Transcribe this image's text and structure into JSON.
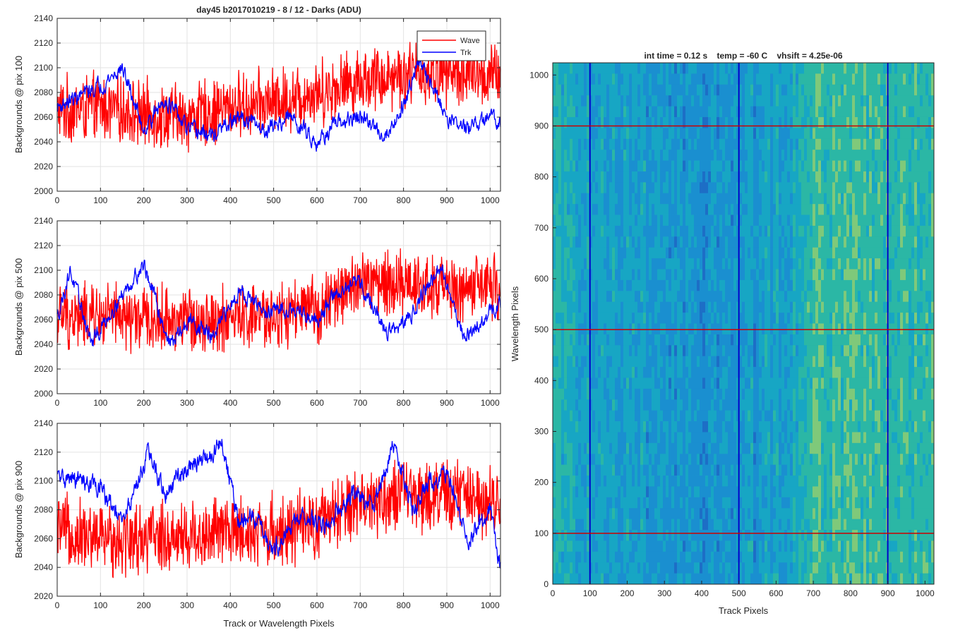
{
  "figure_title": "day45 b2017010219 - 8 / 12 - Darks (ADU)",
  "chart_data": [
    {
      "type": "line",
      "ylabel": "Backgrounds @ pix 100",
      "xlabel": "",
      "xlim": [
        0,
        1024
      ],
      "ylim": [
        2000,
        2140
      ],
      "xticks": [
        0,
        100,
        200,
        300,
        400,
        500,
        600,
        700,
        800,
        900,
        1000
      ],
      "yticks": [
        2000,
        2020,
        2040,
        2060,
        2080,
        2100,
        2120,
        2140
      ],
      "grid": true,
      "legend": {
        "placement": "top-right",
        "entries": [
          "Wave",
          "Trk"
        ]
      },
      "series": [
        {
          "name": "Wave",
          "color": "#ff0000",
          "samples": 1024,
          "anchors_x": [
            0,
            100,
            200,
            300,
            400,
            500,
            600,
            700,
            800,
            900,
            1024
          ],
          "anchors_y": [
            2065,
            2068,
            2062,
            2060,
            2068,
            2072,
            2080,
            2090,
            2095,
            2096,
            2092
          ],
          "spread": 32
        },
        {
          "name": "Trk",
          "color": "#0000ff",
          "samples": 1024,
          "anchors_x": [
            0,
            40,
            80,
            110,
            150,
            200,
            250,
            300,
            360,
            420,
            480,
            540,
            600,
            650,
            700,
            760,
            800,
            830,
            860,
            900,
            950,
            1000,
            1024
          ],
          "anchors_y": [
            2068,
            2075,
            2082,
            2088,
            2100,
            2050,
            2075,
            2050,
            2045,
            2060,
            2050,
            2060,
            2040,
            2055,
            2060,
            2045,
            2070,
            2105,
            2090,
            2060,
            2050,
            2060,
            2058
          ],
          "spread": 10
        }
      ]
    },
    {
      "type": "line",
      "ylabel": "Backgrounds @ pix 500",
      "xlabel": "",
      "xlim": [
        0,
        1024
      ],
      "ylim": [
        2000,
        2140
      ],
      "xticks": [
        0,
        100,
        200,
        300,
        400,
        500,
        600,
        700,
        800,
        900,
        1000
      ],
      "yticks": [
        2000,
        2020,
        2040,
        2060,
        2080,
        2100,
        2120,
        2140
      ],
      "grid": true,
      "series": [
        {
          "name": "Wave",
          "color": "#ff0000",
          "samples": 1024,
          "anchors_x": [
            0,
            100,
            200,
            300,
            400,
            500,
            600,
            700,
            800,
            900,
            1024
          ],
          "anchors_y": [
            2062,
            2062,
            2060,
            2060,
            2060,
            2062,
            2068,
            2090,
            2090,
            2085,
            2085
          ],
          "spread": 32
        },
        {
          "name": "Trk",
          "color": "#0000ff",
          "samples": 1024,
          "anchors_x": [
            0,
            30,
            80,
            130,
            200,
            260,
            310,
            360,
            420,
            480,
            540,
            600,
            640,
            700,
            760,
            800,
            860,
            890,
            940,
            990,
            1024
          ],
          "anchors_y": [
            2062,
            2100,
            2040,
            2070,
            2105,
            2040,
            2060,
            2045,
            2085,
            2065,
            2070,
            2060,
            2080,
            2090,
            2050,
            2055,
            2090,
            2100,
            2045,
            2060,
            2075
          ],
          "spread": 10
        }
      ]
    },
    {
      "type": "line",
      "ylabel": "Backgrounds @ pix 900",
      "xlabel": "Track or Wavelength Pixels",
      "xlim": [
        0,
        1024
      ],
      "ylim": [
        2020,
        2140
      ],
      "xticks": [
        0,
        100,
        200,
        300,
        400,
        500,
        600,
        700,
        800,
        900,
        1000
      ],
      "yticks": [
        2020,
        2040,
        2060,
        2080,
        2100,
        2120,
        2140
      ],
      "grid": true,
      "series": [
        {
          "name": "Wave",
          "color": "#ff0000",
          "samples": 1024,
          "anchors_x": [
            0,
            100,
            200,
            300,
            400,
            500,
            600,
            700,
            800,
            900,
            1024
          ],
          "anchors_y": [
            2065,
            2060,
            2060,
            2062,
            2065,
            2065,
            2068,
            2085,
            2090,
            2090,
            2088
          ],
          "spread": 30
        },
        {
          "name": "Trk",
          "color": "#0000ff",
          "samples": 1024,
          "anchors_x": [
            0,
            60,
            100,
            150,
            210,
            250,
            300,
            350,
            380,
            420,
            460,
            500,
            560,
            620,
            680,
            730,
            780,
            820,
            860,
            900,
            950,
            1000,
            1024
          ],
          "anchors_y": [
            2102,
            2100,
            2095,
            2070,
            2120,
            2090,
            2110,
            2115,
            2128,
            2070,
            2075,
            2052,
            2075,
            2070,
            2090,
            2085,
            2125,
            2080,
            2100,
            2105,
            2060,
            2080,
            2040
          ],
          "spread": 10
        }
      ]
    },
    {
      "type": "heatmap",
      "title": "int time = 0.12 s    temp = -60 C    vhsift = 4.25e-06",
      "xlabel": "Track Pixels",
      "ylabel": "Wavelength Pixels",
      "xlim": [
        0,
        1024
      ],
      "ylim": [
        0,
        1024
      ],
      "xticks": [
        0,
        100,
        200,
        300,
        400,
        500,
        600,
        700,
        800,
        900,
        1000
      ],
      "yticks": [
        0,
        100,
        200,
        300,
        400,
        500,
        600,
        700,
        800,
        900,
        1000
      ],
      "colormap": [
        "#1d6ec6",
        "#1a8fd0",
        "#17a6c4",
        "#2bb7a5",
        "#7fc97a",
        "#c4ce55"
      ],
      "column_profile_x": [
        0,
        100,
        200,
        300,
        400,
        500,
        600,
        680,
        700,
        800,
        900,
        1024
      ],
      "column_profile_level": [
        0.48,
        0.4,
        0.36,
        0.3,
        0.28,
        0.3,
        0.38,
        0.46,
        0.58,
        0.62,
        0.6,
        0.55
      ],
      "vertical_lines": {
        "x": [
          100,
          500,
          900
        ],
        "color": "#0000cc"
      },
      "horizontal_lines": {
        "y": [
          100,
          500,
          900
        ],
        "color": "#cc0000"
      }
    }
  ]
}
